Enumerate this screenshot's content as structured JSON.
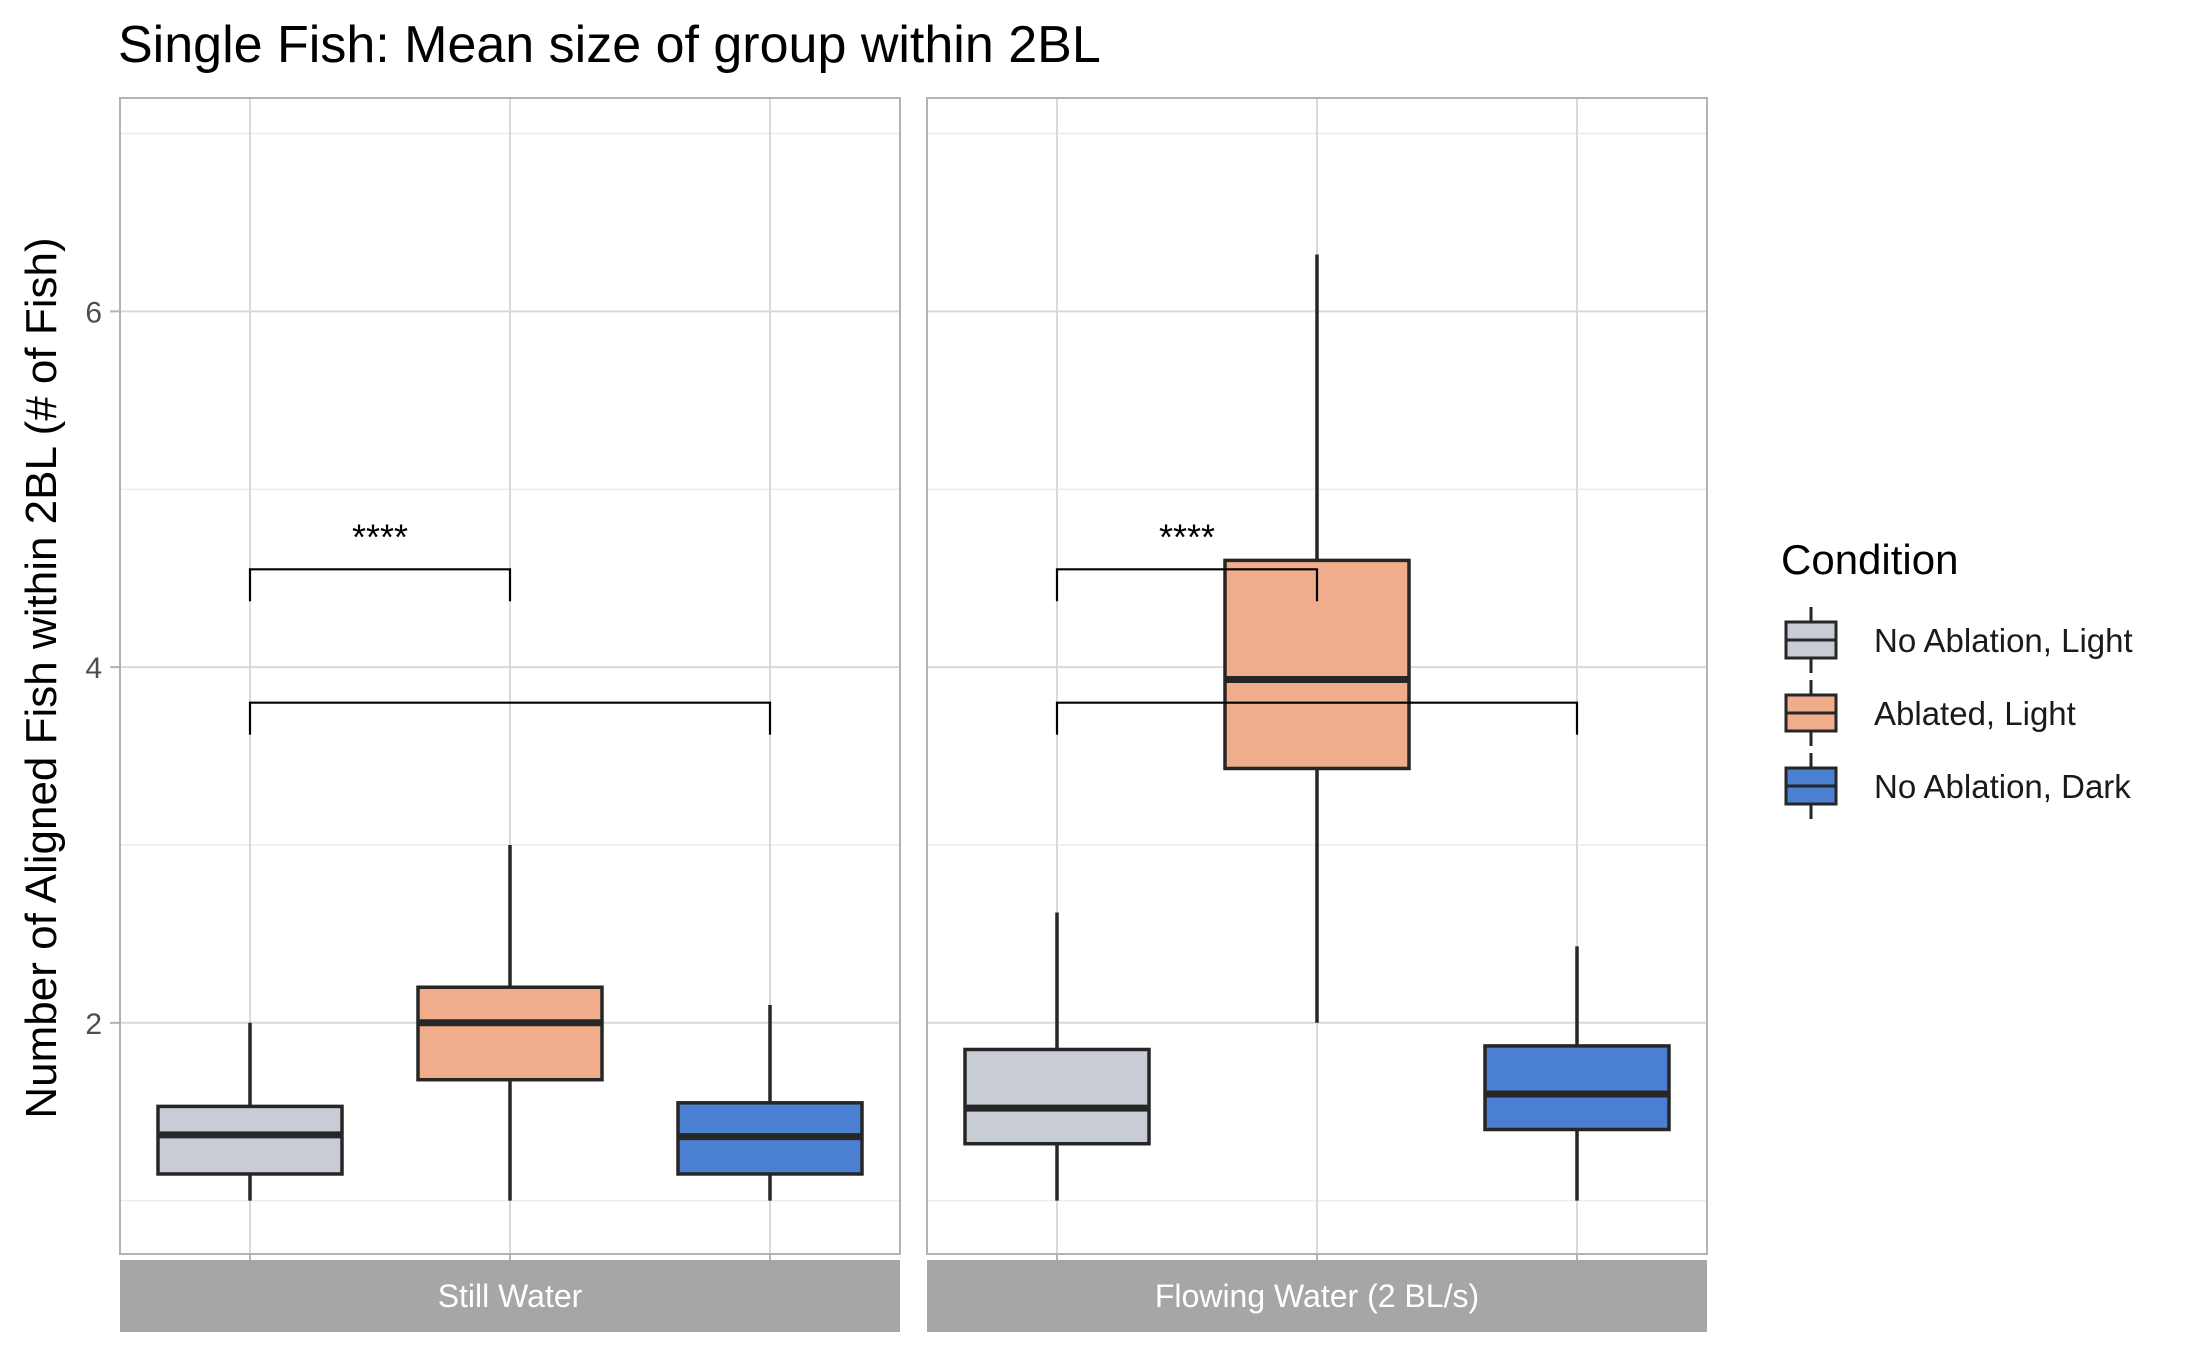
{
  "chart_data": {
    "type": "box",
    "title": "Single Fish: Mean size of group within 2BL",
    "ylabel": "Number of Aligned Fish within 2BL (# of Fish)",
    "xlabel": "",
    "ylim": [
      0.7,
      7.2
    ],
    "y_ticks": [
      2,
      4,
      6
    ],
    "grid": true,
    "legend": {
      "title": "Condition",
      "position": "right",
      "entries": [
        "No Ablation, Light",
        "Ablated, Light",
        "No Ablation, Dark"
      ]
    },
    "colors": {
      "No Ablation, Light": "#c8ccd4",
      "Ablated, Light": "#f0ad8c",
      "No Ablation, Dark": "#4a7fd1"
    },
    "facets": [
      {
        "label": "Still Water",
        "boxes": [
          {
            "group": "No Ablation, Light",
            "min": 1.0,
            "q1": 1.15,
            "median": 1.37,
            "q3": 1.53,
            "max": 2.0
          },
          {
            "group": "Ablated, Light",
            "min": 1.0,
            "q1": 1.68,
            "median": 2.0,
            "q3": 2.2,
            "max": 3.0
          },
          {
            "group": "No Ablation, Dark",
            "min": 1.0,
            "q1": 1.15,
            "median": 1.36,
            "q3": 1.55,
            "max": 2.1
          }
        ],
        "significance": [
          {
            "from": "No Ablation, Light",
            "to": "Ablated, Light",
            "label": "****",
            "y": 4.55
          },
          {
            "from": "No Ablation, Light",
            "to": "No Ablation, Dark",
            "label": "",
            "y": 3.8
          }
        ]
      },
      {
        "label": "Flowing Water (2 BL/s)",
        "boxes": [
          {
            "group": "No Ablation, Light",
            "min": 1.0,
            "q1": 1.32,
            "median": 1.52,
            "q3": 1.85,
            "max": 2.62
          },
          {
            "group": "Ablated, Light",
            "min": 2.0,
            "q1": 3.43,
            "median": 3.93,
            "q3": 4.6,
            "max": 6.32
          },
          {
            "group": "No Ablation, Dark",
            "min": 1.0,
            "q1": 1.4,
            "median": 1.6,
            "q3": 1.87,
            "max": 2.43
          }
        ],
        "significance": [
          {
            "from": "No Ablation, Light",
            "to": "Ablated, Light",
            "label": "****",
            "y": 4.55
          },
          {
            "from": "No Ablation, Light",
            "to": "No Ablation, Dark",
            "label": "",
            "y": 3.8
          }
        ]
      }
    ]
  }
}
